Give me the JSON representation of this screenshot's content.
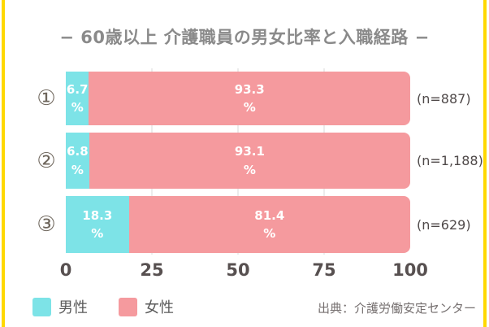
{
  "frame": {
    "border_color": "#FFD800",
    "background": "#FFFFFF"
  },
  "title": "− 60歳以上 介護職員の男女比率と入職経路 −",
  "chart_data": {
    "type": "bar",
    "orientation": "horizontal",
    "stacked": true,
    "title": "60歳以上 介護職員の男女比率と入職経路",
    "categories": [
      "①",
      "②",
      "③"
    ],
    "series": [
      {
        "name": "男性",
        "color": "#7DE3E7",
        "values": [
          6.7,
          6.8,
          18.3
        ]
      },
      {
        "name": "女性",
        "color": "#F59A9E",
        "values": [
          93.3,
          93.1,
          81.4
        ]
      }
    ],
    "sample_sizes": [
      "(n=887)",
      "(n=1,188)",
      "(n=629)"
    ],
    "x_ticks": [
      0,
      25,
      50,
      75,
      100
    ],
    "xlim": [
      0,
      100
    ],
    "gridline_positions": [
      25,
      50,
      75
    ],
    "value_suffix": "%",
    "legend_position": "bottom-left"
  },
  "legend": {
    "items": [
      {
        "label": "男性",
        "color": "#7DE3E7"
      },
      {
        "label": "女性",
        "color": "#F59A9E"
      }
    ]
  },
  "source": "出典：介護労働安定センター"
}
